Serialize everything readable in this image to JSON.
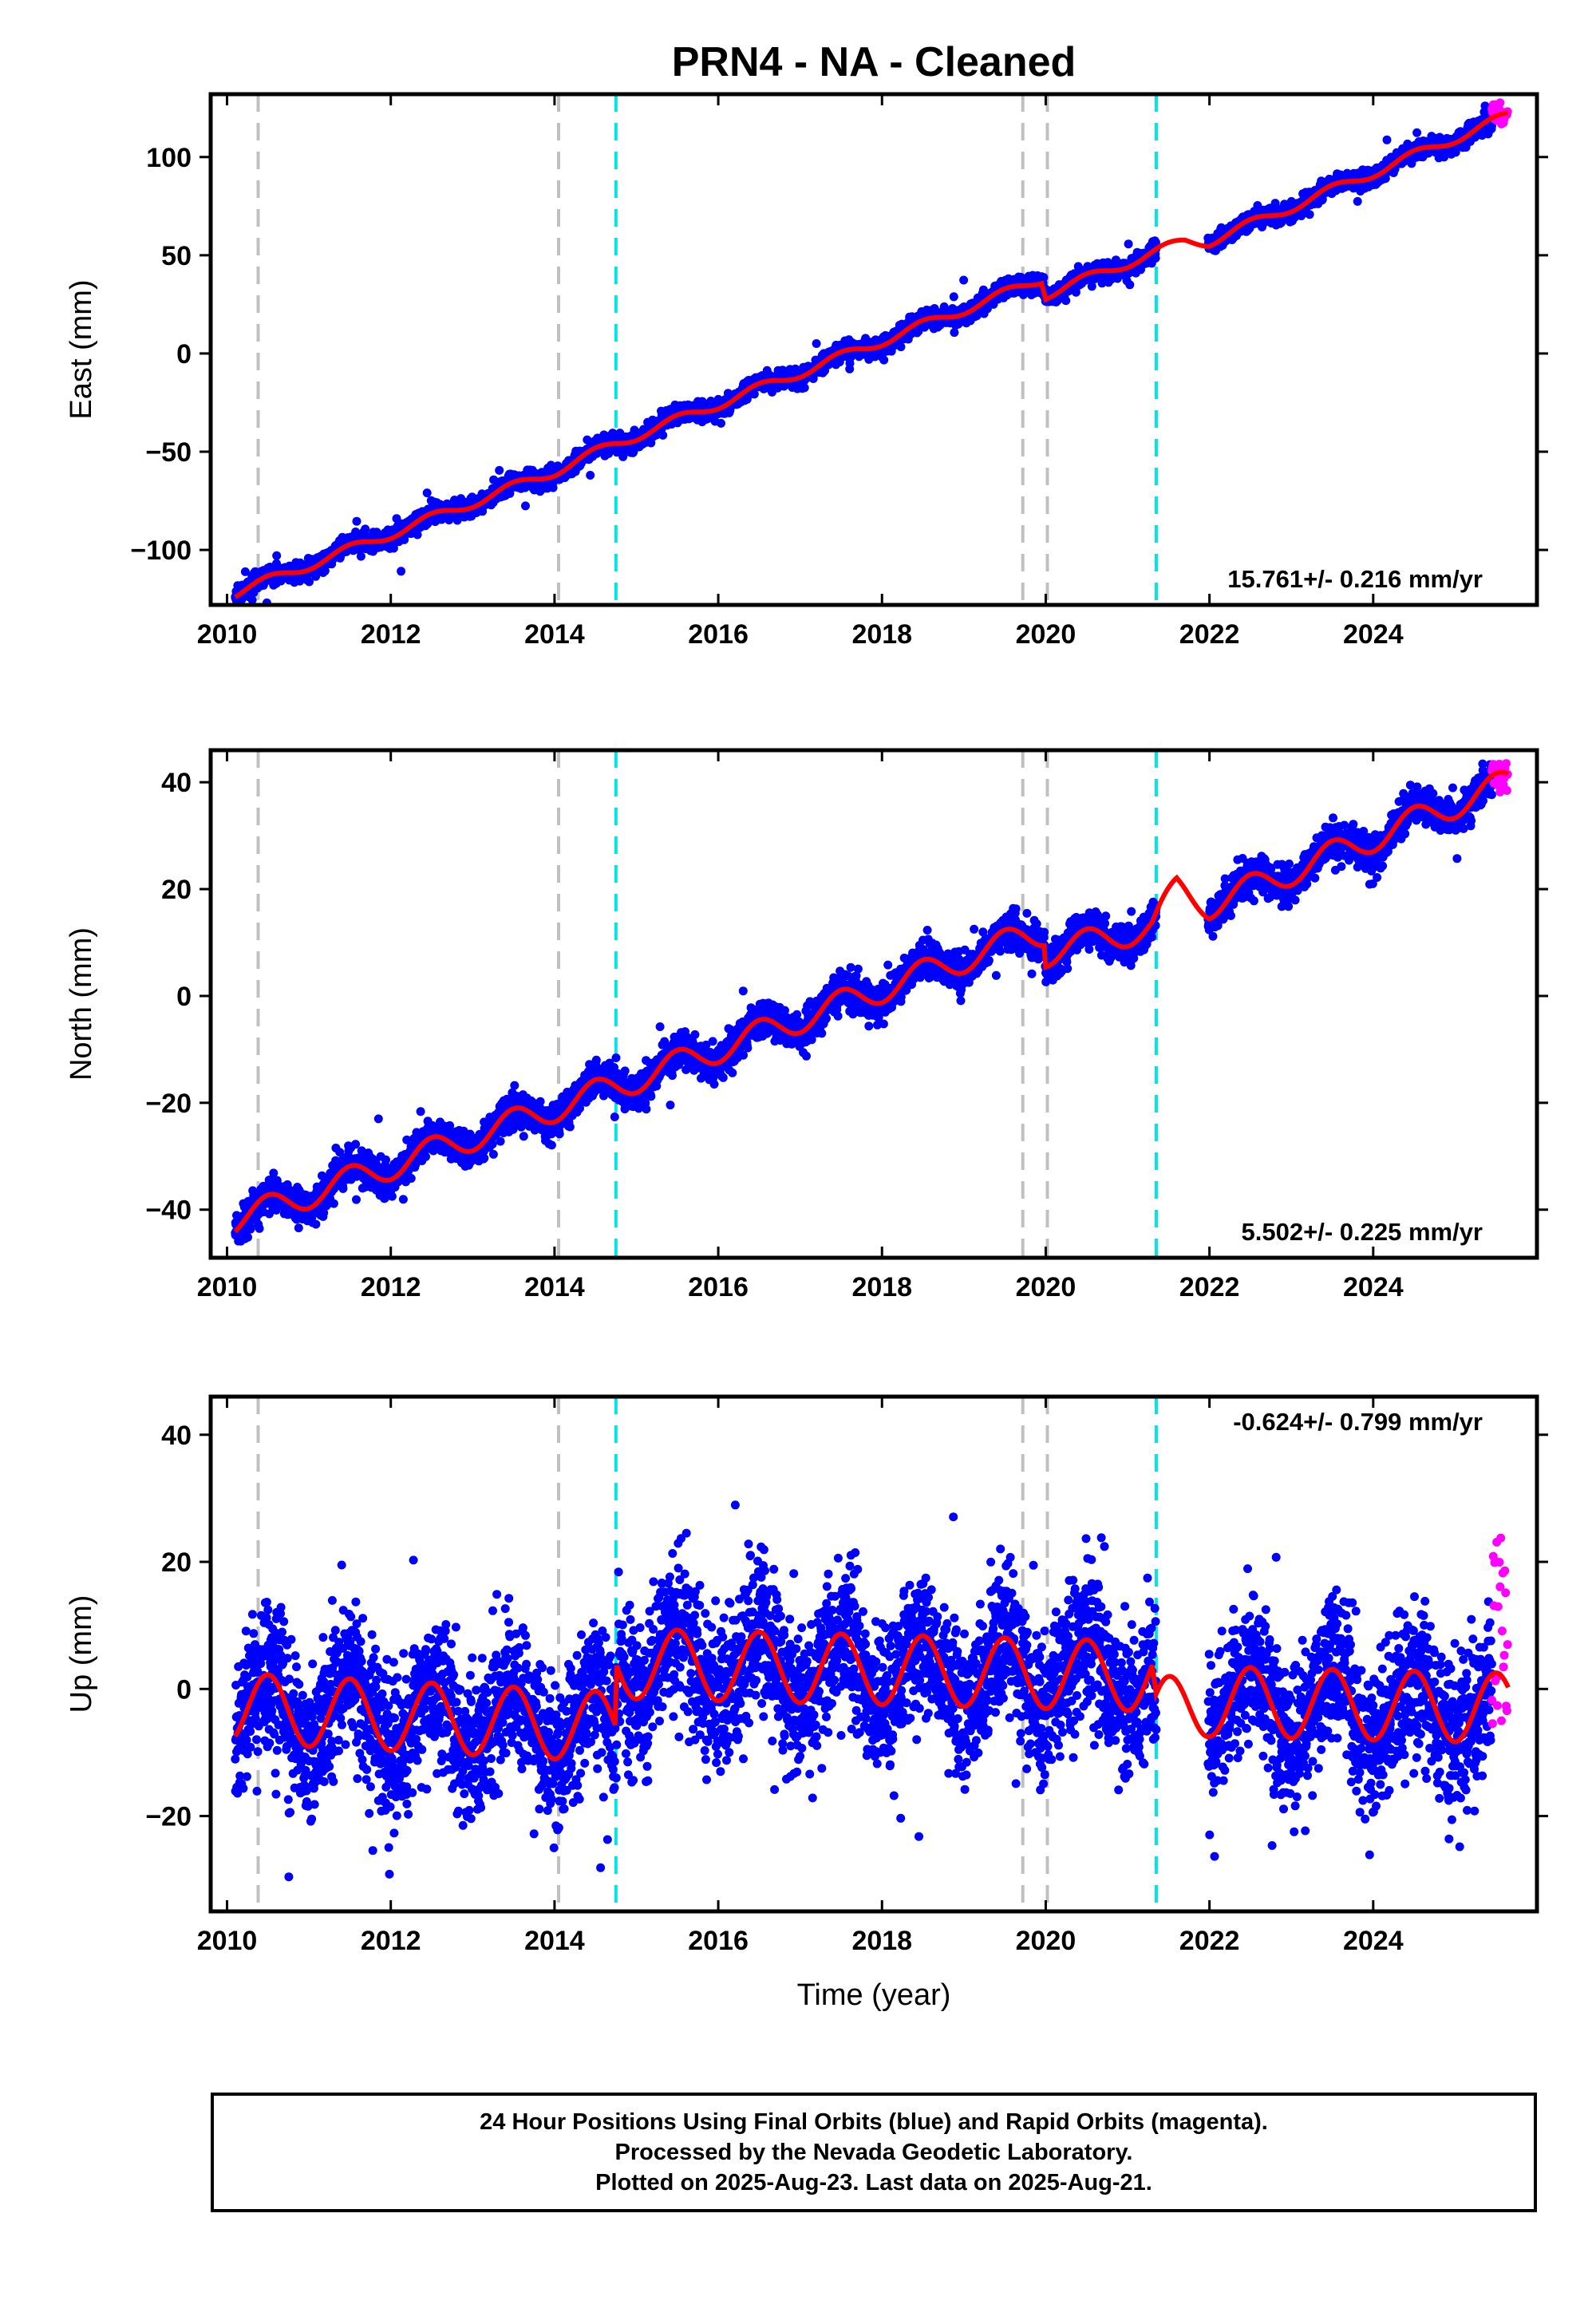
{
  "title": "PRN4  - NA - Cleaned",
  "xlabel": "Time (year)",
  "footer": {
    "line1": "24 Hour Positions Using Final Orbits (blue) and Rapid Orbits (magenta).",
    "line2": "Processed by the Nevada Geodetic Laboratory.",
    "line3": "Plotted on 2025-Aug-23. Last data on 2025-Aug-21."
  },
  "colors": {
    "final": "#0000ff",
    "rapid": "#ff00ff",
    "model": "#ff0000",
    "gray_line": "#c0c0c0",
    "cyan_line": "#00e5e5"
  },
  "chart_data": [
    {
      "type": "scatter",
      "panel": "east",
      "ylabel": "East (mm)",
      "rate_label": "15.761+/- 0.216 mm/yr",
      "xlim": [
        2009.8,
        2026.0
      ],
      "ylim": [
        -128,
        132
      ],
      "xticks": [
        2010,
        2012,
        2014,
        2016,
        2018,
        2020,
        2022,
        2024
      ],
      "yticks": [
        -100,
        -50,
        0,
        50,
        100
      ],
      "vlines_gray": [
        2010.38,
        2014.05,
        2019.72,
        2020.02
      ],
      "vlines_cyan": [
        2014.75,
        2021.35
      ],
      "gaps": [
        [
          2021.35,
          2021.98
        ]
      ],
      "trend_knots": [
        [
          2010.1,
          -122
        ],
        [
          2014.0,
          -60
        ],
        [
          2014.74,
          -46
        ],
        [
          2019.72,
          34
        ],
        [
          2019.95,
          38
        ],
        [
          2020.0,
          30
        ],
        [
          2021.3,
          51
        ],
        [
          2021.7,
          57
        ],
        [
          2022.0,
          57
        ],
        [
          2025.65,
          121
        ]
      ],
      "seasonal_amp": 2.5,
      "scatter": 2.2,
      "rapid_range": [
        2025.45,
        2025.65
      ],
      "rapid_values": [
        116,
        128
      ]
    },
    {
      "type": "scatter",
      "panel": "north",
      "ylabel": "North (mm)",
      "rate_label": "5.502+/- 0.225 mm/yr",
      "xlim": [
        2009.8,
        2026.0
      ],
      "ylim": [
        -49,
        46
      ],
      "xticks": [
        2010,
        2012,
        2014,
        2016,
        2018,
        2020,
        2022,
        2024
      ],
      "yticks": [
        -40,
        -20,
        0,
        20,
        40
      ],
      "vlines_gray": [
        2010.38,
        2014.05,
        2019.72,
        2020.02
      ],
      "vlines_cyan": [
        2014.75,
        2021.35
      ],
      "gaps": [
        [
          2021.35,
          2021.98
        ]
      ],
      "trend_knots": [
        [
          2010.1,
          -42
        ],
        [
          2014.0,
          -21
        ],
        [
          2014.74,
          -17
        ],
        [
          2019.72,
          11
        ],
        [
          2019.98,
          12
        ],
        [
          2020.0,
          8
        ],
        [
          2021.3,
          13
        ],
        [
          2021.6,
          20
        ],
        [
          2022.0,
          17
        ],
        [
          2025.65,
          40
        ]
      ],
      "seasonal_amp": 2.6,
      "scatter": 1.6,
      "rapid_range": [
        2025.45,
        2025.65
      ],
      "rapid_values": [
        38,
        44
      ]
    },
    {
      "type": "scatter",
      "panel": "up",
      "ylabel": "Up (mm)",
      "rate_label": "-0.624+/- 0.799 mm/yr",
      "xlim": [
        2009.8,
        2026.0
      ],
      "ylim": [
        -35,
        46
      ],
      "xticks": [
        2010,
        2012,
        2014,
        2016,
        2018,
        2020,
        2022,
        2024
      ],
      "yticks": [
        -20,
        0,
        20,
        40
      ],
      "vlines_gray": [
        2010.38,
        2014.05,
        2019.72,
        2020.02
      ],
      "vlines_cyan": [
        2014.75,
        2021.35
      ],
      "gaps": [
        [
          2021.35,
          2021.98
        ]
      ],
      "trend_knots": [
        [
          2010.1,
          -3
        ],
        [
          2014.74,
          -6
        ],
        [
          2014.76,
          4
        ],
        [
          2021.3,
          2
        ],
        [
          2021.35,
          -4
        ],
        [
          2022.0,
          -2
        ],
        [
          2025.65,
          -3
        ]
      ],
      "seasonal_amp": 5.5,
      "scatter": 5.8,
      "rapid_range": [
        2025.45,
        2025.65
      ],
      "rapid_values": [
        -6,
        25
      ]
    }
  ]
}
